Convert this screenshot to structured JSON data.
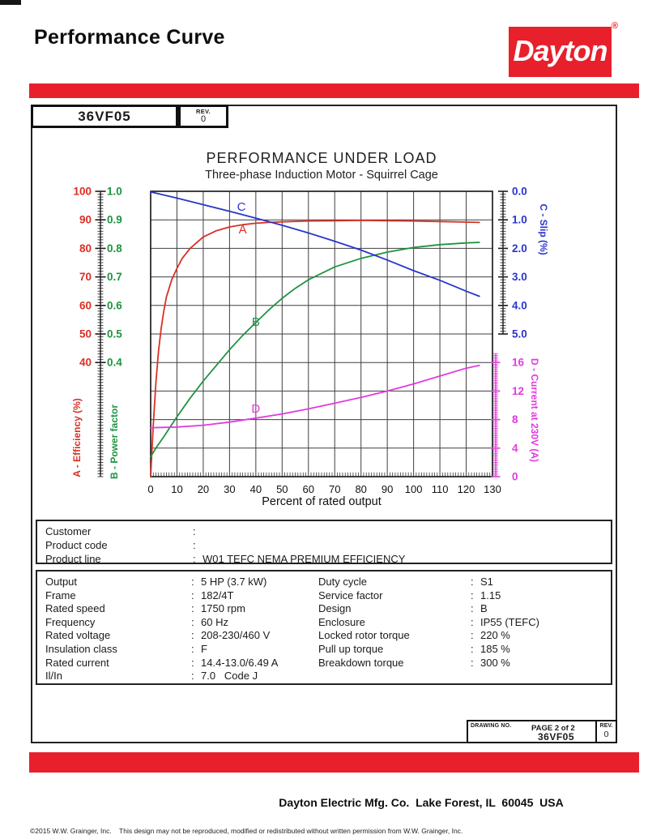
{
  "header": {
    "title": "Performance Curve",
    "brand": "Dayton",
    "brand_registered": "®"
  },
  "doc": {
    "model": "36VF05",
    "rev_label": "REV.",
    "rev_value": "0"
  },
  "chart_data": {
    "type": "line",
    "title": "PERFORMANCE UNDER LOAD",
    "subtitle": "Three-phase Induction Motor - Squirrel Cage",
    "xlabel": "Percent of rated output",
    "xlim": [
      0,
      130
    ],
    "x_ticks": [
      "0",
      "10",
      "20",
      "30",
      "40",
      "50",
      "60",
      "70",
      "80",
      "90",
      "100",
      "110",
      "120",
      "130"
    ],
    "grid": true,
    "axes": [
      {
        "id": "efficiency",
        "label": "A - Efficiency (%)",
        "side": "left",
        "color": "#d93025",
        "ticks": [
          "100",
          "90",
          "80",
          "70",
          "60",
          "50",
          "40"
        ],
        "range": [
          0,
          100
        ]
      },
      {
        "id": "power_factor",
        "label": "B - Power factor",
        "side": "left",
        "color": "#1e9440",
        "ticks": [
          "1.0",
          "0.9",
          "0.8",
          "0.7",
          "0.6",
          "0.5",
          "0.4"
        ],
        "range": [
          0,
          1
        ]
      },
      {
        "id": "slip",
        "label": "C - Slip (%)",
        "side": "right",
        "color": "#2a35cc",
        "ticks": [
          "0.0",
          "1.0",
          "2.0",
          "3.0",
          "4.0",
          "5.0"
        ],
        "range": [
          0,
          5
        ]
      },
      {
        "id": "current",
        "label": "D - Current at 230V (A)",
        "side": "right",
        "color": "#e33ae0",
        "ticks": [
          "16",
          "12",
          "8",
          "4",
          "0"
        ],
        "range": [
          0,
          16
        ]
      }
    ],
    "series": [
      {
        "id": "A",
        "name": "Efficiency (%)",
        "axis": "efficiency",
        "color": "#d93025",
        "x": [
          0,
          1,
          2,
          3,
          4,
          5,
          6,
          8,
          10,
          12,
          15,
          20,
          25,
          30,
          35,
          40,
          45,
          50,
          60,
          70,
          80,
          90,
          100,
          110,
          120,
          125
        ],
        "y": [
          0,
          18,
          33,
          44,
          52,
          58,
          63,
          69,
          73,
          76.5,
          80,
          84,
          86.2,
          87.5,
          88.3,
          88.8,
          89.1,
          89.3,
          89.6,
          89.7,
          89.8,
          89.7,
          89.6,
          89.4,
          89.2,
          89.1
        ],
        "label": {
          "text": "A",
          "x": 35,
          "y": 86.3
        }
      },
      {
        "id": "B",
        "name": "Power factor",
        "axis": "power_factor",
        "color": "#1e9440",
        "x": [
          0,
          2,
          5,
          10,
          15,
          20,
          25,
          30,
          35,
          40,
          45,
          50,
          55,
          60,
          70,
          80,
          90,
          100,
          110,
          120,
          125
        ],
        "y": [
          0.07,
          0.1,
          0.14,
          0.21,
          0.275,
          0.335,
          0.39,
          0.445,
          0.495,
          0.54,
          0.585,
          0.625,
          0.66,
          0.69,
          0.735,
          0.765,
          0.787,
          0.803,
          0.813,
          0.819,
          0.821
        ],
        "label": {
          "text": "B",
          "x": 40,
          "y": 0.54
        }
      },
      {
        "id": "C",
        "name": "Slip (%)",
        "axis": "slip",
        "color": "#2a35cc",
        "x": [
          0,
          10,
          20,
          30,
          40,
          50,
          60,
          70,
          80,
          90,
          100,
          110,
          120,
          125
        ],
        "y": [
          0.02,
          0.24,
          0.47,
          0.7,
          0.94,
          1.19,
          1.46,
          1.75,
          2.06,
          2.41,
          2.78,
          3.12,
          3.5,
          3.68
        ],
        "label": {
          "text": "C",
          "x": 34.5,
          "y": 0.57
        }
      },
      {
        "id": "D",
        "name": "Current at 230V (A)",
        "axis": "current",
        "color": "#e33ae0",
        "x": [
          0,
          10,
          20,
          30,
          40,
          50,
          60,
          70,
          80,
          90,
          100,
          110,
          120,
          125
        ],
        "y": [
          6.85,
          6.95,
          7.2,
          7.65,
          8.2,
          8.8,
          9.5,
          10.3,
          11.1,
          12.0,
          13.0,
          14.1,
          15.2,
          15.6
        ],
        "label": {
          "text": "D",
          "x": 40,
          "y": 9.4
        }
      }
    ]
  },
  "customer": {
    "rows": [
      {
        "label": "Customer",
        "value": ""
      },
      {
        "label": "Product code",
        "value": ""
      },
      {
        "label": "Product line",
        "value": "W01 TEFC NEMA PREMIUM EFFICIENCY"
      }
    ]
  },
  "specs": {
    "left": [
      {
        "label": "Output",
        "value": "5 HP (3.7 kW)"
      },
      {
        "label": "Frame",
        "value": "182/4T"
      },
      {
        "label": "Rated speed",
        "value": "1750 rpm"
      },
      {
        "label": "Frequency",
        "value": "60 Hz"
      },
      {
        "label": "Rated voltage",
        "value": "208-230/460 V"
      },
      {
        "label": "Insulation class",
        "value": "F"
      },
      {
        "label": "Rated current",
        "value": "14.4-13.0/6.49 A"
      },
      {
        "label": "Il/In",
        "value": "7.0   Code J"
      }
    ],
    "right": [
      {
        "label": "Duty cycle",
        "value": "S1"
      },
      {
        "label": "Service factor",
        "value": "1.15"
      },
      {
        "label": "Design",
        "value": "B"
      },
      {
        "label": "Enclosure",
        "value": "IP55 (TEFC)"
      },
      {
        "label": "Locked rotor torque",
        "value": "220 %"
      },
      {
        "label": "Pull up torque",
        "value": "185 %"
      },
      {
        "label": "Breakdown torque",
        "value": "300 %"
      }
    ]
  },
  "footer": {
    "drawing_no_label": "DRAWING NO.",
    "page": "PAGE 2 of 2",
    "drawing_no": "36VF05",
    "rev_label": "REV.",
    "rev_value": "0",
    "company": "Dayton Electric Mfg. Co.  Lake Forest, IL  60045  USA",
    "copyright": "©2015 W.W. Grainger, Inc.    This design may not be reproduced, modified or redistributed without written permission from W.W. Grainger, Inc."
  },
  "colors": {
    "accent_red": "#e8202c"
  }
}
